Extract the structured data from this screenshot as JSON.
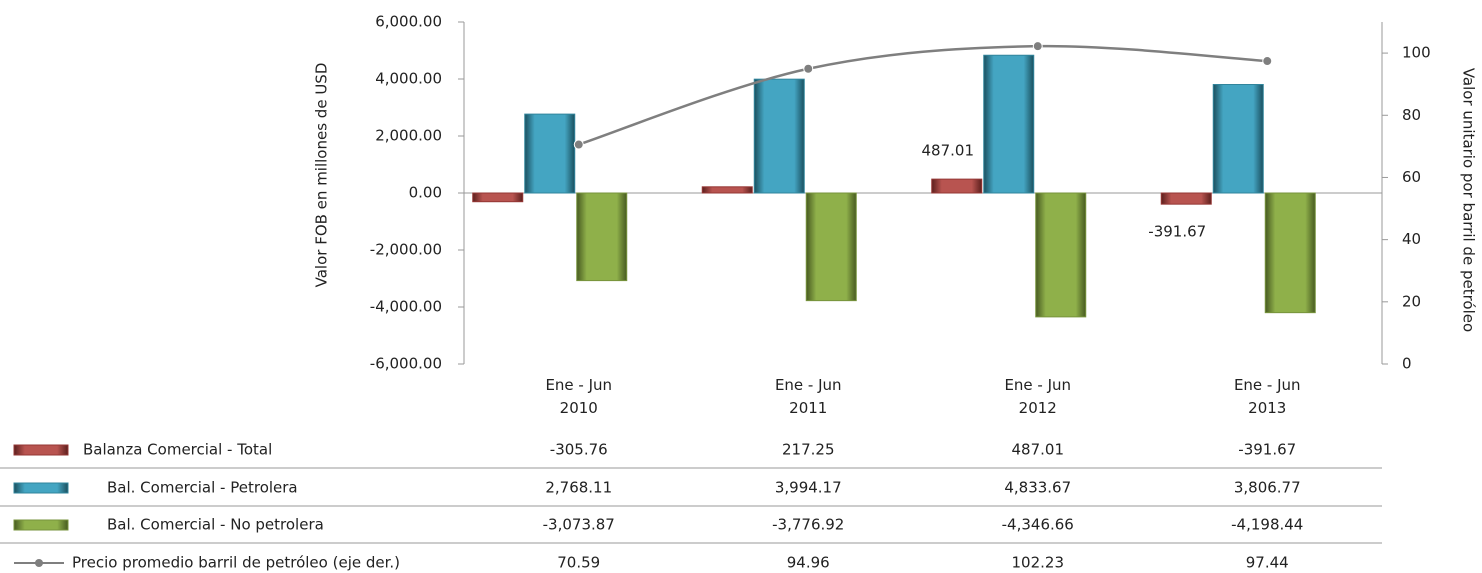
{
  "chart_data": {
    "type": "bar",
    "categories": [
      "Ene - Jun\n2010",
      "Ene - Jun\n2011",
      "Ene - Jun\n2012",
      "Ene - Jun\n2013"
    ],
    "ylabel": "Valor FOB en millones de USD",
    "y2label": "Valor unitario por barril de petróleo",
    "ylim": [
      -6000,
      6000
    ],
    "yticks": [
      {
        "value": -6000,
        "label": "-6,000.00"
      },
      {
        "value": -4000,
        "label": "-4,000.00"
      },
      {
        "value": -2000,
        "label": "-2,000.00"
      },
      {
        "value": 0,
        "label": "0.00"
      },
      {
        "value": 2000,
        "label": "2,000.00"
      },
      {
        "value": 4000,
        "label": "4,000.00"
      },
      {
        "value": 6000,
        "label": "6,000.00"
      }
    ],
    "y2lim": [
      0,
      110
    ],
    "y2ticks": [
      0,
      20,
      40,
      60,
      80,
      100
    ],
    "series": [
      {
        "name": "Balanza Comercial - Total",
        "color": "#953735",
        "values": [
          -305.76,
          217.25,
          487.01,
          -391.67
        ],
        "labeled_points": [
          2,
          3
        ]
      },
      {
        "name": "Bal. Comercial - Petrolera",
        "color": "#31859c",
        "values": [
          2768.11,
          3994.17,
          4833.67,
          3806.77
        ],
        "value_labels": [
          "2,768.11",
          "3,994.17",
          "4,833.67",
          "3,806.77"
        ]
      },
      {
        "name": "Bal. Comercial - No petrolera",
        "color": "#77933c",
        "values": [
          -3073.87,
          -3776.92,
          -4346.66,
          -4198.44
        ],
        "value_labels": [
          "-3,073.87",
          "-3,776.92",
          "-4,346.66",
          "-4,198.44"
        ]
      },
      {
        "name": "Precio promedio barril de petróleo (eje der.)",
        "color": "#7f7f7f",
        "type": "line",
        "axis": "y2",
        "values": [
          70.59,
          94.96,
          102.23,
          97.44
        ]
      }
    ]
  }
}
